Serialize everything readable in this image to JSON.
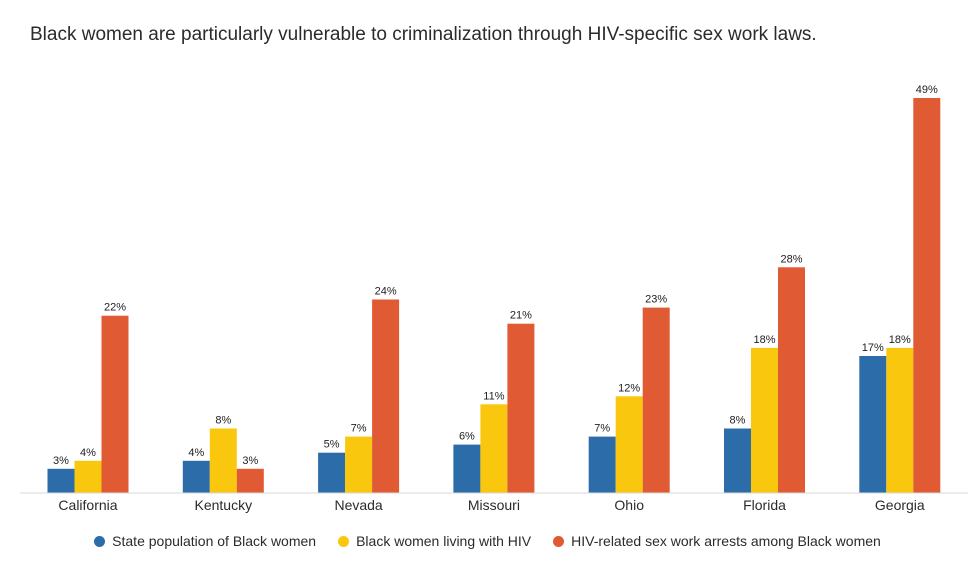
{
  "title": "Black women are particularly vulnerable to criminalization through HIV-specific sex work laws.",
  "chart_data": {
    "type": "bar",
    "categories": [
      "California",
      "Kentucky",
      "Nevada",
      "Missouri",
      "Ohio",
      "Florida",
      "Georgia"
    ],
    "series": [
      {
        "name": "State population of Black women",
        "color": "#2b6ca9",
        "values": [
          3,
          4,
          5,
          6,
          7,
          8,
          17
        ]
      },
      {
        "name": "Black women living with HIV",
        "color": "#f9c80e",
        "values": [
          4,
          8,
          7,
          11,
          12,
          18,
          18
        ]
      },
      {
        "name": "HIV-related sex work arrests among Black women",
        "color": "#e05a33",
        "values": [
          22,
          3,
          24,
          21,
          23,
          28,
          49
        ]
      }
    ],
    "value_suffix": "%",
    "ylim": [
      0,
      49
    ],
    "grid": false,
    "legend_position": "bottom-center"
  }
}
